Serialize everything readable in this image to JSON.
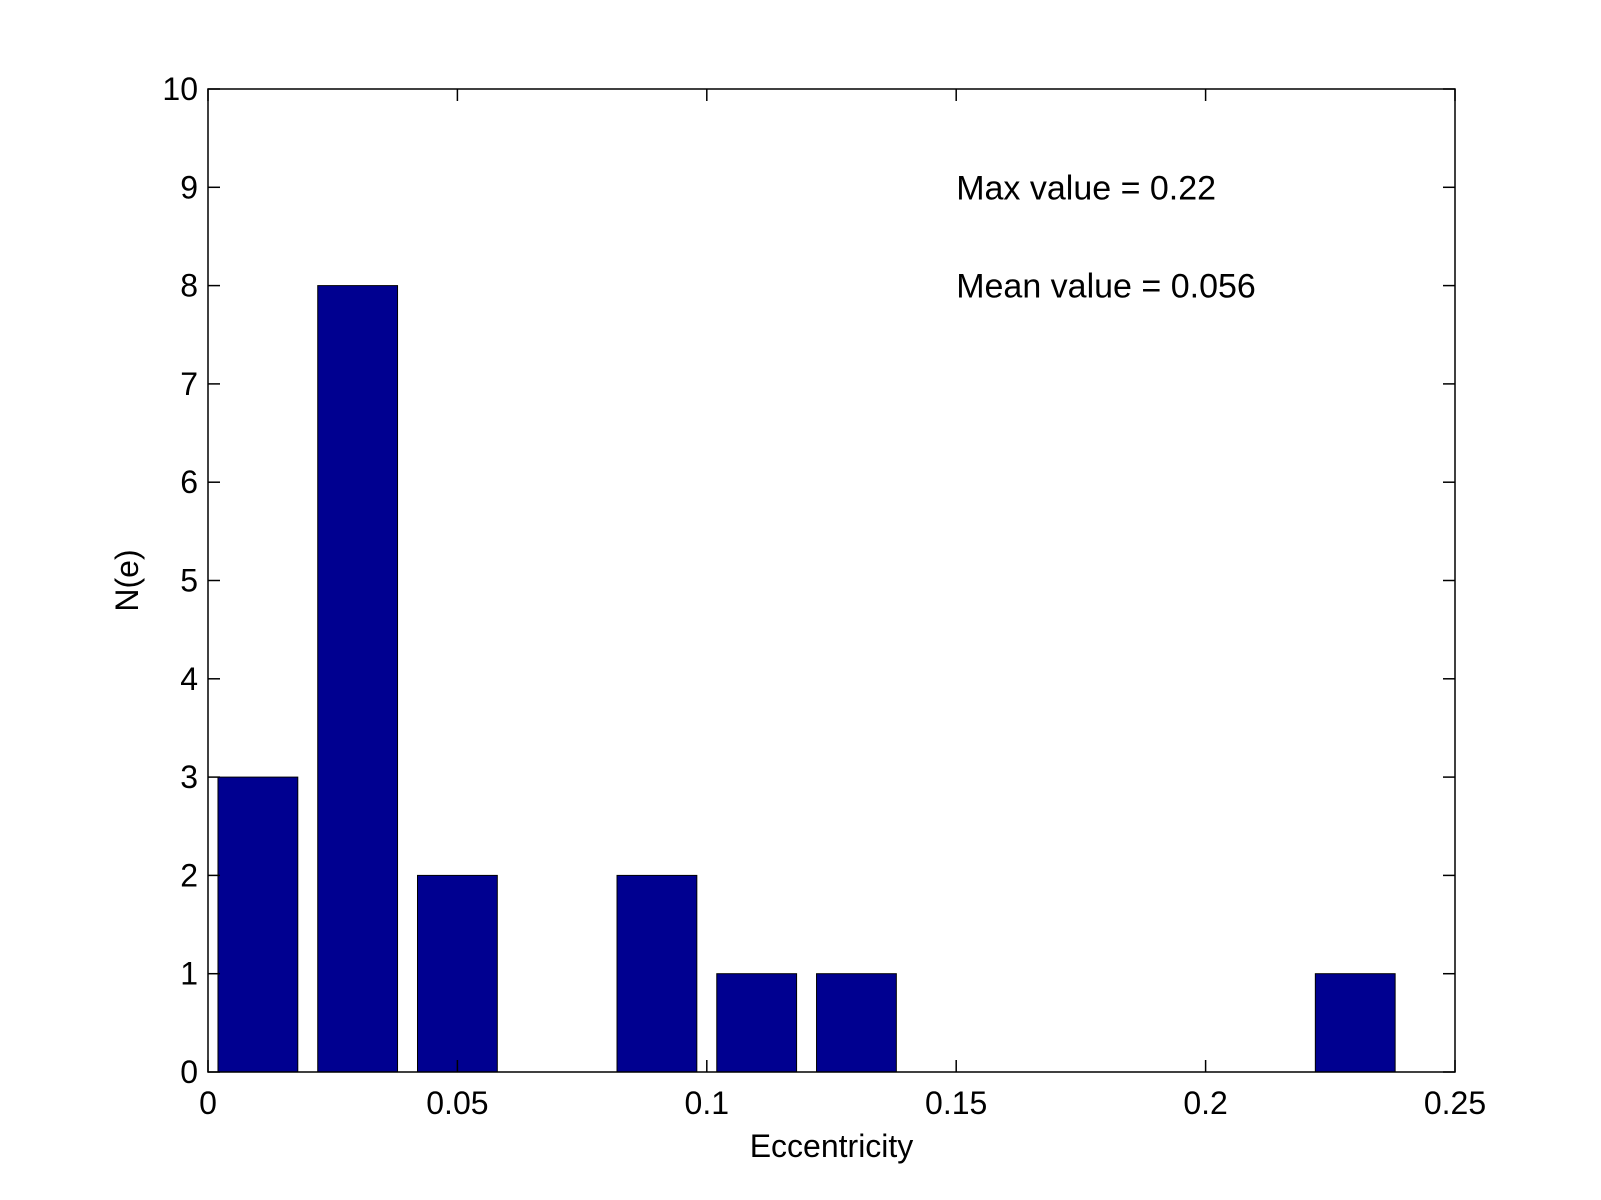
{
  "chart_data": {
    "type": "bar",
    "title": "",
    "xlabel": "Eccentricity",
    "ylabel": "N(e)",
    "xlim": [
      0,
      0.25
    ],
    "ylim": [
      0,
      10
    ],
    "x_ticks": [
      0,
      0.05,
      0.1,
      0.15,
      0.2,
      0.25
    ],
    "x_tick_labels": [
      "0",
      "0.05",
      "0.1",
      "0.15",
      "0.2",
      "0.25"
    ],
    "y_ticks": [
      0,
      1,
      2,
      3,
      4,
      5,
      6,
      7,
      8,
      9,
      10
    ],
    "y_tick_labels": [
      "0",
      "1",
      "2",
      "3",
      "4",
      "5",
      "6",
      "7",
      "8",
      "9",
      "10"
    ],
    "bin_width": 0.02,
    "x": [
      0.01,
      0.03,
      0.05,
      0.07,
      0.09,
      0.11,
      0.13,
      0.15,
      0.17,
      0.19,
      0.21,
      0.23
    ],
    "values": [
      3,
      8,
      2,
      0,
      2,
      1,
      1,
      0,
      0,
      0,
      0,
      1
    ],
    "bar_color": "#000090",
    "grid": false,
    "annotations": [
      "Max value = 0.22",
      "Mean value = 0.056"
    ]
  }
}
